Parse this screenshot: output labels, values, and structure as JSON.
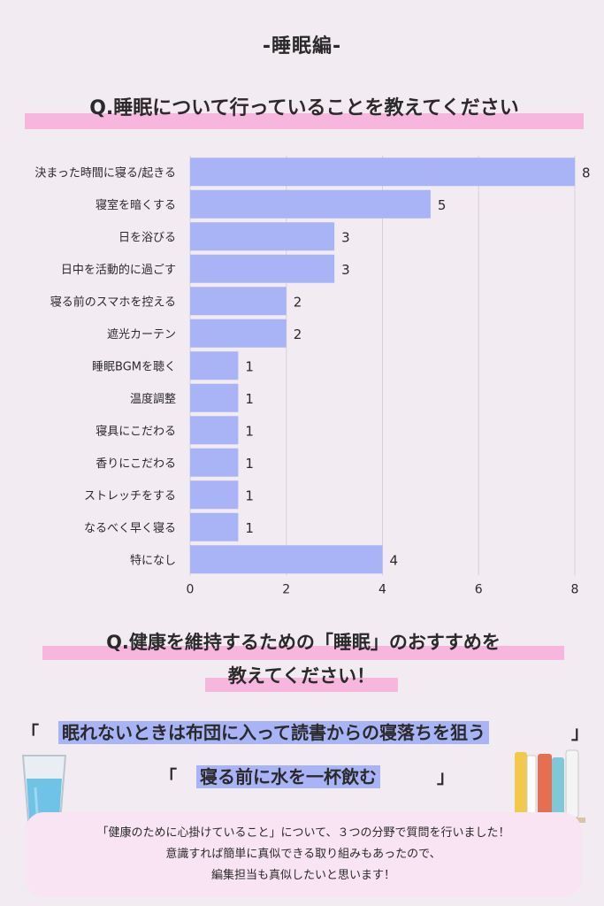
{
  "header": {
    "title": "-睡眠編-"
  },
  "question1": "Q.睡眠について行っていることを教えてください",
  "chart_data": {
    "type": "bar",
    "orientation": "horizontal",
    "categories": [
      "決まった時間に寝る/起きる",
      "寝室を暗くする",
      "日を浴びる",
      "日中を活動的に過ごす",
      "寝る前のスマホを控える",
      "遮光カーテン",
      "睡眠BGMを聴く",
      "温度調整",
      "寝具にこだわる",
      "香りにこだわる",
      "ストレッチをする",
      "なるべく早く寝る",
      "特になし"
    ],
    "values": [
      8,
      5,
      3,
      3,
      2,
      2,
      1,
      1,
      1,
      1,
      1,
      1,
      4
    ],
    "xlim": [
      0,
      8
    ],
    "xticks": [
      0,
      2,
      4,
      6,
      8
    ],
    "grid": true,
    "colors": {
      "bar": "#a9b4f7",
      "grid": "#d7d1d7"
    }
  },
  "question2": {
    "line1": "Q.健康を維持するための「睡眠」のおすすめを",
    "line2": "教えてください！"
  },
  "answers": [
    {
      "open": "「",
      "text": "眠れないときは布団に入って読書からの寝落ちを狙う",
      "close": "」"
    },
    {
      "open": "「",
      "text": "寝る前に水を一杯飲む",
      "close": "」"
    }
  ],
  "footer": {
    "line1": "「健康のために心掛けていること」について、３つの分野で質問を行いました！",
    "line2": "意識すれば簡単に真似できる取り組みもあったので、",
    "line3": "編集担当も真似したいと思います！"
  },
  "icons": [
    "water-glass-icon",
    "books-icon"
  ]
}
